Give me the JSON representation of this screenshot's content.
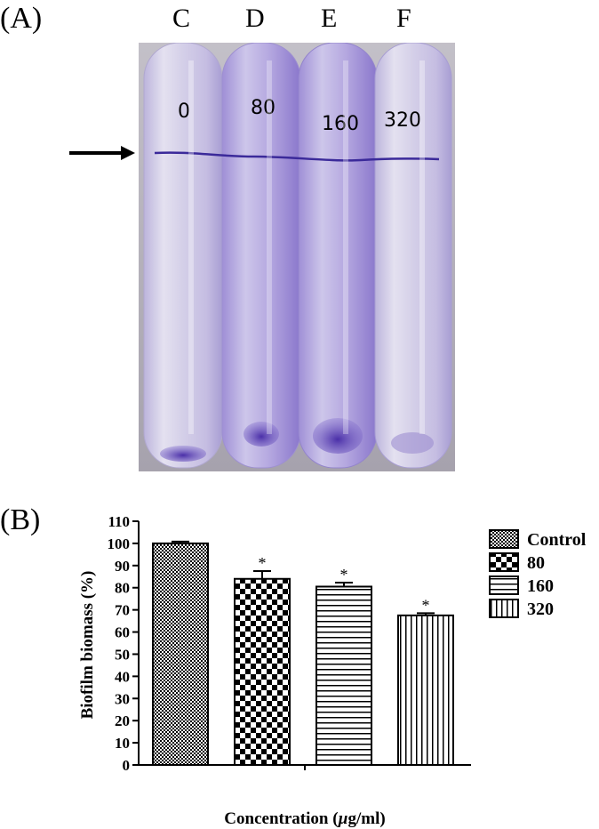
{
  "panels": {
    "a_label": "(A)",
    "b_label": "(B)"
  },
  "photo": {
    "tube_letters": [
      "C",
      "D",
      "E",
      "F"
    ],
    "tube_marks": [
      "0",
      "80",
      "160",
      "320"
    ],
    "colors": {
      "background": "#b9b6bf",
      "tube": "#cfcbe3",
      "stain": "#5a3fb3",
      "ring": "#3b2a9a"
    }
  },
  "chart_data": {
    "type": "bar",
    "categories": [
      "Control",
      "80",
      "160",
      "320"
    ],
    "values": [
      100,
      84,
      80.5,
      67.5
    ],
    "error": [
      0.8,
      3.5,
      1.8,
      1.0
    ],
    "significance": [
      "",
      "*",
      "*",
      "*"
    ],
    "patterns": [
      "fine-check",
      "checkerboard",
      "horizontal-lines",
      "vertical-lines"
    ],
    "ylabel": "Biofilm biomass (%)",
    "xlabel_prefix": "Concentration (",
    "xlabel_unit_mu": "µ",
    "xlabel_unit_rest": "g/ml",
    "xlabel_suffix": ")",
    "ylim": [
      0,
      110
    ],
    "yticks": [
      0,
      10,
      20,
      30,
      40,
      50,
      60,
      70,
      80,
      90,
      100,
      110
    ],
    "legend_position": "right",
    "grid": false
  }
}
